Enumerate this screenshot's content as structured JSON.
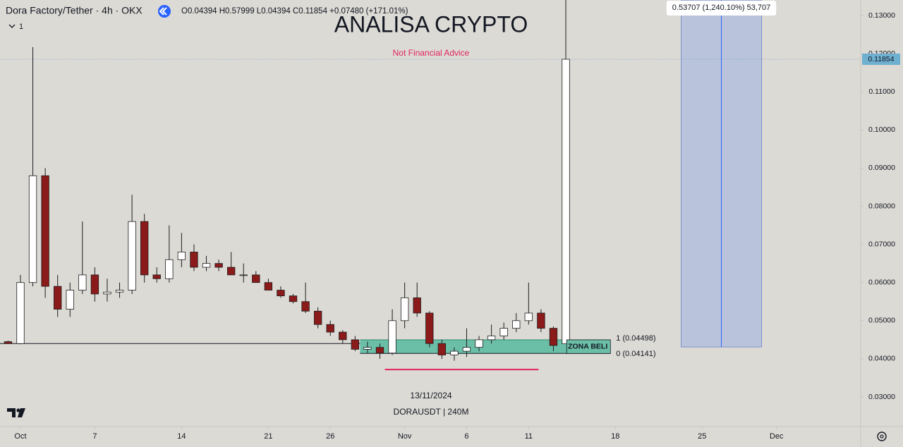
{
  "header": {
    "symbol": "Dora Factory/Tether · 4h · OKX",
    "ohlc": "O0.04394 H0.57999 L0.04394 C0.11854 +0.07480 (+171.01%)",
    "indicator_count": "1"
  },
  "chart_data": {
    "type": "candlestick",
    "title": "ANALISA CRYPTO",
    "subtitle": "Not Financial Advice",
    "x": [
      -1,
      0,
      1,
      2,
      3,
      4,
      5,
      6,
      7,
      8,
      9,
      10,
      11,
      12,
      13,
      14,
      15,
      16,
      17,
      18,
      19,
      20,
      21,
      22,
      23,
      24,
      25,
      26,
      27,
      28,
      29,
      30,
      31,
      32,
      33,
      34,
      35,
      36,
      37,
      38,
      39,
      40,
      41,
      42,
      43,
      44
    ],
    "open": [
      0.0445,
      0.044,
      0.06,
      0.088,
      0.059,
      0.053,
      0.058,
      0.062,
      0.057,
      0.0575,
      0.058,
      0.076,
      0.062,
      0.061,
      0.066,
      0.068,
      0.064,
      0.065,
      0.064,
      0.062,
      0.062,
      0.06,
      0.058,
      0.0565,
      0.055,
      0.0525,
      0.049,
      0.047,
      0.045,
      0.0425,
      0.043,
      0.0415,
      0.05,
      0.056,
      0.052,
      0.044,
      0.041,
      0.042,
      0.043,
      0.045,
      0.046,
      0.048,
      0.05,
      0.052,
      0.048,
      0.04394
    ],
    "high": [
      0.0448,
      0.062,
      0.1217,
      0.09,
      0.062,
      0.06,
      0.076,
      0.064,
      0.061,
      0.06,
      0.083,
      0.078,
      0.064,
      0.075,
      0.073,
      0.07,
      0.067,
      0.066,
      0.068,
      0.065,
      0.063,
      0.061,
      0.059,
      0.057,
      0.06,
      0.0535,
      0.05,
      0.0475,
      0.046,
      0.0445,
      0.044,
      0.053,
      0.06,
      0.06,
      0.0525,
      0.045,
      0.043,
      0.048,
      0.046,
      0.049,
      0.0495,
      0.052,
      0.06,
      0.053,
      0.0485,
      0.57999
    ],
    "low": [
      0.044,
      0.0438,
      0.059,
      0.056,
      0.051,
      0.051,
      0.057,
      0.055,
      0.055,
      0.056,
      0.057,
      0.06,
      0.06,
      0.06,
      0.064,
      0.063,
      0.063,
      0.063,
      0.062,
      0.06,
      0.06,
      0.058,
      0.056,
      0.0545,
      0.052,
      0.048,
      0.046,
      0.044,
      0.042,
      0.0415,
      0.04,
      0.041,
      0.048,
      0.051,
      0.043,
      0.04,
      0.0395,
      0.0405,
      0.042,
      0.044,
      0.045,
      0.047,
      0.049,
      0.047,
      0.042,
      0.04394
    ],
    "close": [
      0.044,
      0.06,
      0.088,
      0.059,
      0.053,
      0.058,
      0.062,
      0.057,
      0.0575,
      0.058,
      0.076,
      0.062,
      0.061,
      0.066,
      0.068,
      0.064,
      0.065,
      0.064,
      0.062,
      0.062,
      0.06,
      0.058,
      0.0565,
      0.055,
      0.0525,
      0.049,
      0.047,
      0.045,
      0.0425,
      0.043,
      0.0415,
      0.05,
      0.056,
      0.052,
      0.044,
      0.041,
      0.042,
      0.043,
      0.045,
      0.046,
      0.048,
      0.05,
      0.052,
      0.048,
      0.0435,
      0.11854
    ],
    "up_color": "#ffffff",
    "down_color": "#8b1a1a",
    "wick_color": "#1e1e1e",
    "xlim": [
      -1.65,
      67.79
    ],
    "ylim": [
      0.01688,
      0.13407
    ],
    "xticks": [
      {
        "value": 0,
        "label": "Oct"
      },
      {
        "value": 6,
        "label": "7"
      },
      {
        "value": 13,
        "label": "14"
      },
      {
        "value": 20,
        "label": "21"
      },
      {
        "value": 25,
        "label": "26"
      },
      {
        "value": 31,
        "label": "Nov"
      },
      {
        "value": 36,
        "label": "6"
      },
      {
        "value": 41,
        "label": "11"
      },
      {
        "value": 48,
        "label": "18"
      },
      {
        "value": 55,
        "label": "25"
      },
      {
        "value": 61,
        "label": "Dec"
      }
    ],
    "yticks": [
      {
        "value": 0.03,
        "label": "0.03000"
      },
      {
        "value": 0.04,
        "label": "0.04000"
      },
      {
        "value": 0.05,
        "label": "0.05000"
      },
      {
        "value": 0.06,
        "label": "0.06000"
      },
      {
        "value": 0.07,
        "label": "0.07000"
      },
      {
        "value": 0.08,
        "label": "0.08000"
      },
      {
        "value": 0.09,
        "label": "0.09000"
      },
      {
        "value": 0.1,
        "label": "0.10000"
      },
      {
        "value": 0.11,
        "label": "0.11000"
      },
      {
        "value": 0.12,
        "label": "0.12000"
      },
      {
        "value": 0.13,
        "label": "0.13000"
      }
    ],
    "last_price": 0.11854,
    "support_line": {
      "value": 0.044,
      "x": [
        -1.65,
        27.4
      ]
    },
    "low_line": {
      "value": 0.0372,
      "x": [
        29.4,
        41.8
      ],
      "color": "#e0245e"
    },
    "zone": {
      "label": "ZONA BELI",
      "top": 0.04498,
      "bottom": 0.04141,
      "top_label": "1 (0.04498)",
      "bottom_label": "0 (0.04141)",
      "x": [
        27.4,
        47.6
      ],
      "color": "#6cbfa7"
    },
    "measure": {
      "label": "0.53707 (1,240.10%) 53,707",
      "bottom": 0.0431,
      "top": 0.13407,
      "x": [
        53.3,
        59.8
      ],
      "color": "#b9c3dc"
    },
    "date_label": "13/11/2024",
    "symbol_label": "DORAUSDT | 240M"
  }
}
